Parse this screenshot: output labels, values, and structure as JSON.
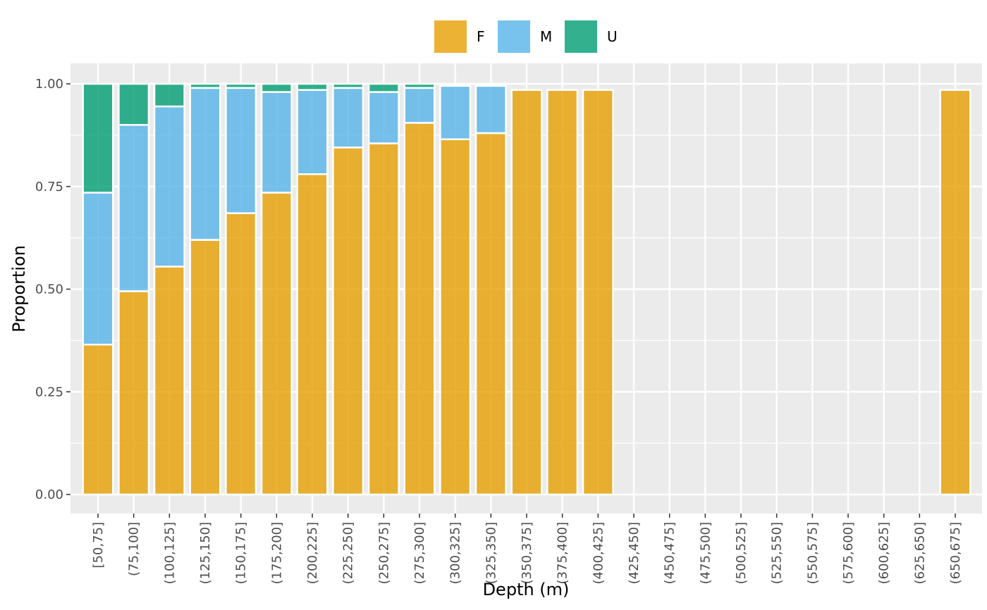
{
  "chart_data": {
    "type": "bar",
    "stacked": true,
    "xlabel": "Depth (m)",
    "ylabel": "Proportion",
    "ylim": [
      0,
      1
    ],
    "y_ticks": [
      "0.00",
      "0.25",
      "0.50",
      "0.75",
      "1.00"
    ],
    "grid": true,
    "legend_position": "top",
    "categories": [
      "[50,75]",
      "(75,100]",
      "(100,125]",
      "(125,150]",
      "(150,175]",
      "(175,200]",
      "(200,225]",
      "(225,250]",
      "(250,275]",
      "(275,300]",
      "(300,325]",
      "(325,350]",
      "(350,375]",
      "(375,400]",
      "(400,425]",
      "(425,450]",
      "(450,475]",
      "(475,500]",
      "(500,525]",
      "(525,550]",
      "(550,575]",
      "(575,600]",
      "(600,625]",
      "(625,650]",
      "(650,675]"
    ],
    "series": [
      {
        "name": "F",
        "color": "#E69F00",
        "values": [
          0.365,
          0.495,
          0.555,
          0.62,
          0.685,
          0.735,
          0.78,
          0.845,
          0.855,
          0.905,
          0.865,
          0.88,
          0.985,
          0.985,
          0.985,
          0,
          0,
          0,
          0,
          0,
          0,
          0,
          0,
          0,
          0.985
        ]
      },
      {
        "name": "M",
        "color": "#56B4E9",
        "values": [
          0.37,
          0.405,
          0.39,
          0.37,
          0.305,
          0.245,
          0.205,
          0.145,
          0.125,
          0.085,
          0.13,
          0.115,
          0,
          0,
          0,
          0,
          0,
          0,
          0,
          0,
          0,
          0,
          0,
          0,
          0
        ]
      },
      {
        "name": "U",
        "color": "#009E73",
        "values": [
          0.265,
          0.1,
          0.055,
          0.01,
          0.01,
          0.02,
          0.015,
          0.01,
          0.02,
          0.01,
          0,
          0,
          0,
          0,
          0,
          0,
          0,
          0,
          0,
          0,
          0,
          0,
          0,
          0,
          0
        ]
      }
    ]
  }
}
